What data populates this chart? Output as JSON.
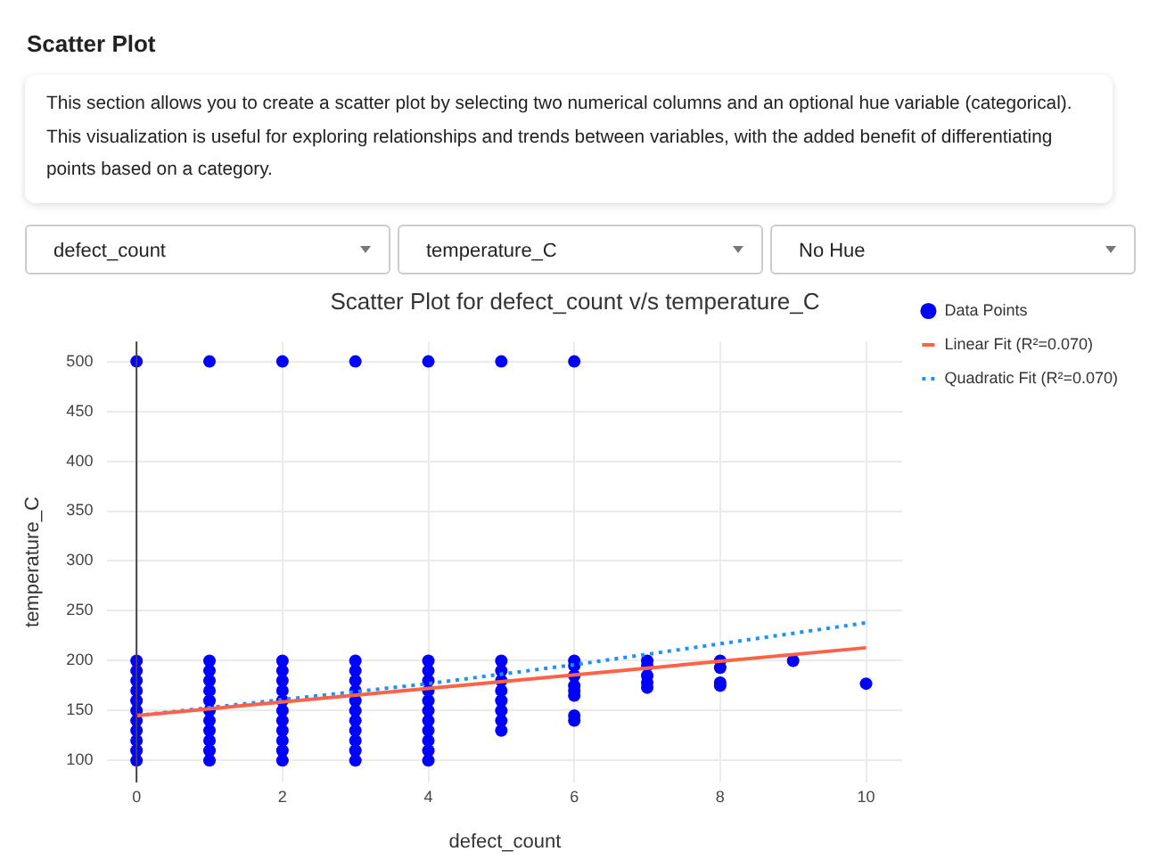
{
  "chart_data": {
    "type": "scatter",
    "title": "Scatter Plot for defect_count v/s temperature_C",
    "xlabel": "defect_count",
    "ylabel": "temperature_C",
    "annotations": [
      "Scatter Plot",
      "This section allows you to create a scatter plot by selecting two numerical columns and an optional hue variable (categorical). This visualization is useful for exploring relationships and trends between variables, with the added benefit of differentiating points based on a category.",
      "defect_count",
      "temperature_C",
      "No Hue"
    ],
    "xlim": [
      -0.4,
      10.5
    ],
    "xticks": [
      0,
      2,
      4,
      6,
      8,
      10
    ],
    "ylim": [
      78,
      520
    ],
    "yticks": [
      100,
      150,
      200,
      250,
      300,
      350,
      400,
      450,
      500
    ],
    "grid": true,
    "legend": "top right",
    "ref_lines": [
      {
        "axis": "x",
        "value": 0,
        "color": "#444444"
      }
    ],
    "series": [
      {
        "name": "Data Points",
        "type": "scatter",
        "marker": "circle",
        "color": "#0000ff",
        "x": [
          0,
          0,
          0,
          0,
          0,
          0,
          0,
          0,
          0,
          0,
          0,
          1,
          1,
          1,
          1,
          1,
          1,
          1,
          1,
          1,
          1,
          1,
          2,
          2,
          2,
          2,
          2,
          2,
          2,
          2,
          2,
          2,
          2,
          3,
          3,
          3,
          3,
          3,
          3,
          3,
          3,
          3,
          3,
          3,
          4,
          4,
          4,
          4,
          4,
          4,
          4,
          4,
          4,
          4,
          4,
          5,
          5,
          5,
          5,
          5,
          5,
          5,
          5,
          6,
          6,
          6,
          6,
          6,
          6,
          6,
          6,
          7,
          7,
          7,
          7,
          7,
          8,
          8,
          8,
          8,
          9,
          10,
          0,
          1,
          2,
          3,
          4,
          5,
          6
        ],
        "values": [
          100,
          110,
          120,
          130,
          140,
          150,
          160,
          170,
          180,
          190,
          200,
          100,
          110,
          120,
          130,
          140,
          150,
          160,
          170,
          180,
          190,
          200,
          100,
          110,
          120,
          130,
          140,
          150,
          160,
          170,
          180,
          190,
          200,
          100,
          110,
          120,
          130,
          140,
          150,
          160,
          170,
          180,
          190,
          200,
          100,
          110,
          120,
          130,
          140,
          150,
          160,
          170,
          180,
          190,
          200,
          130,
          140,
          150,
          160,
          170,
          180,
          190,
          200,
          140,
          145,
          165,
          170,
          175,
          185,
          195,
          200,
          173,
          178,
          185,
          195,
          200,
          175,
          178,
          193,
          200,
          200,
          177,
          500,
          500,
          500,
          500,
          500,
          500,
          500
        ]
      },
      {
        "name": "Linear Fit (R²=0.070)",
        "type": "line",
        "marker": "none",
        "line_style": "solid",
        "color": "#ff6347",
        "x": [
          0,
          10
        ],
        "values": [
          145,
          213
        ]
      },
      {
        "name": "Quadratic Fit (R²=0.070)",
        "type": "line",
        "marker": "none",
        "line_style": "dotted",
        "color": "#1e90ff",
        "x": [
          0,
          2,
          4,
          6,
          8,
          10
        ],
        "values": [
          145,
          161,
          177,
          196,
          217,
          238
        ]
      }
    ]
  }
}
